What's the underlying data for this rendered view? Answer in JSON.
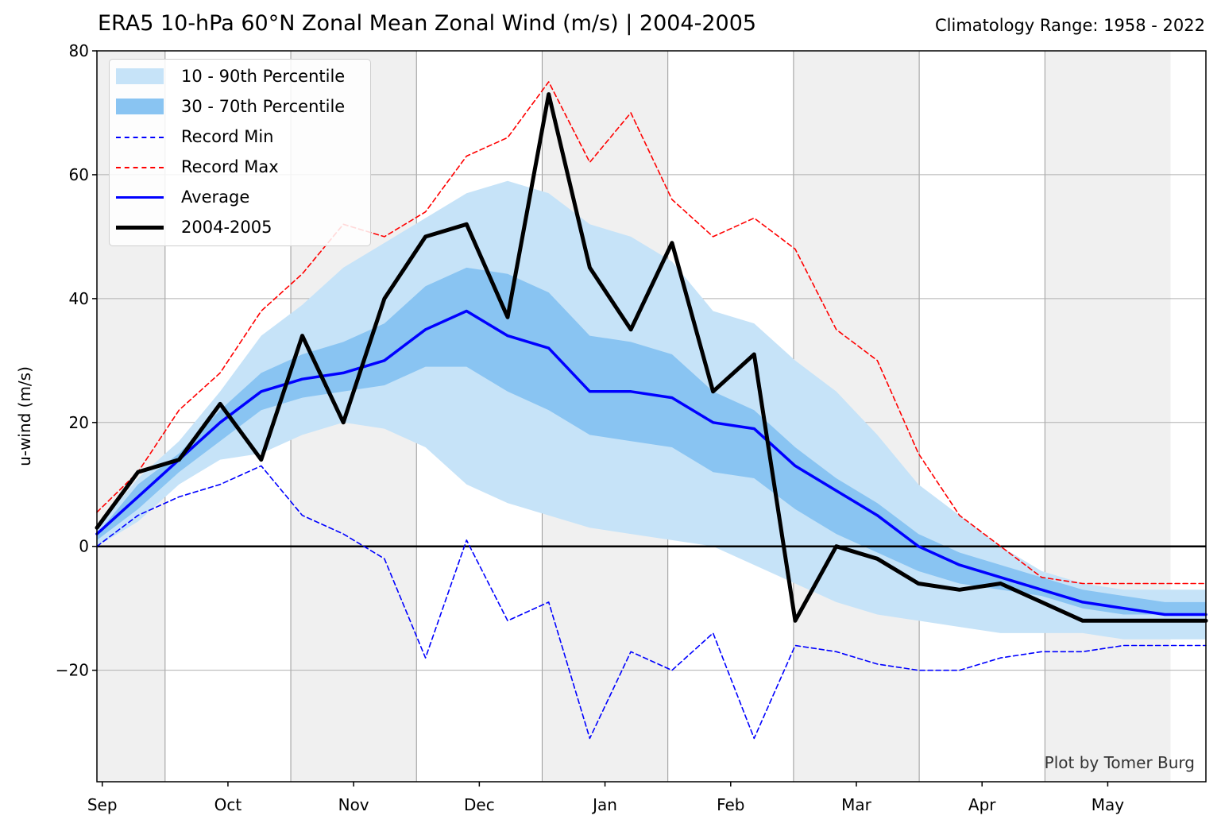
{
  "chart_data": {
    "type": "line",
    "title": "ERA5 10-hPa 60°N Zonal Mean Zonal Wind (m/s) | 2004-2005",
    "subtitle": "Climatology Range: 1958 - 2022",
    "ylabel": "u-wind (m/s)",
    "credit": "Plot by Tomer Burg",
    "ylim": [
      -38,
      80
    ],
    "y_ticks": [
      -20,
      0,
      20,
      40,
      60,
      80
    ],
    "y_tick_labels": [
      "−20",
      "0",
      "20",
      "40",
      "60",
      "80"
    ],
    "months": [
      "Sep",
      "Oct",
      "Nov",
      "Dec",
      "Jan",
      "Feb",
      "Mar",
      "Apr",
      "May"
    ],
    "x_days": [
      0,
      10,
      20,
      30,
      40,
      50,
      60,
      70,
      80,
      90,
      100,
      110,
      120,
      130,
      140,
      150,
      160,
      170,
      180,
      190,
      200,
      210,
      220,
      230,
      240,
      250,
      260,
      270
    ],
    "series": [
      {
        "name": "Average",
        "color": "#0000ff",
        "values": [
          2,
          8,
          14,
          20,
          25,
          27,
          28,
          30,
          35,
          38,
          34,
          32,
          25,
          25,
          24,
          20,
          19,
          13,
          9,
          5,
          0,
          -3,
          -5,
          -7,
          -9,
          -10,
          -11,
          -11
        ]
      },
      {
        "name": "2004-2005",
        "color": "#000000",
        "values": [
          3,
          12,
          14,
          23,
          14,
          34,
          20,
          40,
          50,
          52,
          37,
          73,
          45,
          35,
          49,
          25,
          31,
          -12,
          0,
          -2,
          -6,
          -7,
          -6,
          -9,
          -12,
          -12,
          -12,
          -12
        ]
      },
      {
        "name": "Record Max",
        "color": "#ff0000",
        "values": [
          5.5,
          12,
          22,
          28,
          38,
          44,
          52,
          50,
          54,
          63,
          66,
          75,
          62,
          70,
          56,
          50,
          53,
          48,
          35,
          30,
          15,
          5,
          0,
          -5,
          -6,
          -6,
          -6,
          -6
        ]
      },
      {
        "name": "Record Min",
        "color": "#0000ff",
        "values": [
          0,
          5,
          8,
          10,
          13,
          5,
          2,
          -2,
          -18,
          1,
          -12,
          -9,
          -31,
          -17,
          -20,
          -14,
          -31,
          -16,
          -17,
          -19,
          -20,
          -20,
          -18,
          -17,
          -17,
          -16,
          -16,
          -16
        ]
      }
    ],
    "bands": [
      {
        "name": "10 - 90th Percentile",
        "color": "#c6e3f8",
        "lower": [
          0,
          4,
          10,
          14,
          15,
          18,
          20,
          19,
          16,
          10,
          7,
          5,
          3,
          2,
          1,
          0,
          -3,
          -6,
          -9,
          -11,
          -12,
          -13,
          -14,
          -14,
          -14,
          -15,
          -15,
          -15
        ],
        "upper": [
          3,
          11,
          17,
          25,
          34,
          39,
          45,
          49,
          53,
          57,
          59,
          57,
          52,
          50,
          46,
          38,
          36,
          30,
          25,
          18,
          10,
          5,
          0,
          -4,
          -6,
          -7,
          -7,
          -7
        ]
      },
      {
        "name": "30 - 70th Percentile",
        "color": "#89c4f2",
        "lower": [
          1,
          6,
          12,
          17,
          22,
          24,
          25,
          26,
          29,
          29,
          25,
          22,
          18,
          17,
          16,
          12,
          11,
          6,
          2,
          -1,
          -4,
          -6,
          -7,
          -8,
          -10,
          -11,
          -11,
          -11
        ],
        "upper": [
          2,
          10,
          15,
          22,
          28,
          31,
          33,
          36,
          42,
          45,
          44,
          41,
          34,
          33,
          31,
          25,
          22,
          16,
          11,
          7,
          2,
          -1,
          -3,
          -5,
          -7,
          -8,
          -9,
          -9
        ]
      }
    ]
  },
  "legend": {
    "items": [
      {
        "label": "10 - 90th Percentile",
        "kind": "patch",
        "color": "#c6e3f8"
      },
      {
        "label": "30 - 70th Percentile",
        "kind": "patch",
        "color": "#89c4f2"
      },
      {
        "label": "Record Min",
        "kind": "dashed",
        "color": "#0000ff"
      },
      {
        "label": "Record Max",
        "kind": "dashed",
        "color": "#ff0000"
      },
      {
        "label": "Average",
        "kind": "solid",
        "color": "#0000ff"
      },
      {
        "label": "2004-2005",
        "kind": "solid-thick",
        "color": "#000000"
      }
    ]
  }
}
